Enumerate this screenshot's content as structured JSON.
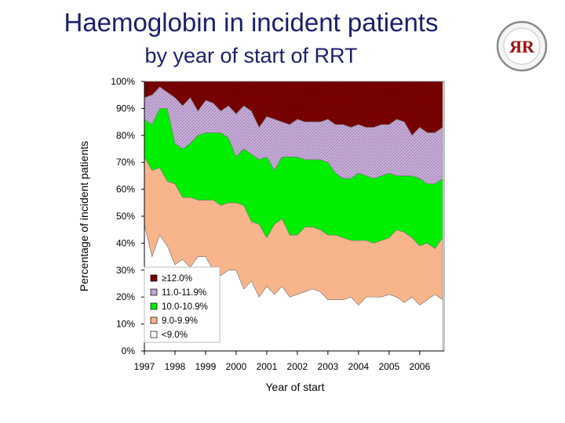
{
  "header": {
    "line1": "Haemoglobin in incident patients",
    "line2": "by year of start of RRT"
  },
  "logo": {
    "letters": "ЯR"
  },
  "chart_data": {
    "type": "area",
    "stacked": true,
    "xlabel": "Year of start",
    "ylabel": "Percentage of incident patients",
    "xlim": [
      1997,
      2006.8
    ],
    "ylim": [
      0,
      100
    ],
    "x_ticks": [
      "1997",
      "1998",
      "1999",
      "2000",
      "2001",
      "2002",
      "2003",
      "2004",
      "2005",
      "2006"
    ],
    "y_ticks": [
      "0%",
      "10%",
      "20%",
      "30%",
      "40%",
      "50%",
      "60%",
      "70%",
      "80%",
      "90%",
      "100%"
    ],
    "legend_position": "bottom-left",
    "x": [
      1997,
      1997.25,
      1997.5,
      1997.75,
      1998,
      1998.25,
      1998.5,
      1998.75,
      1999,
      1999.25,
      1999.5,
      1999.75,
      2000,
      2000.25,
      2000.5,
      2000.75,
      2001,
      2001.25,
      2001.5,
      2001.75,
      2002,
      2002.25,
      2002.5,
      2002.75,
      2003,
      2003.25,
      2003.5,
      2003.75,
      2004,
      2004.25,
      2004.5,
      2004.75,
      2005,
      2005.25,
      2005.5,
      2005.75,
      2006,
      2006.25,
      2006.5,
      2006.75
    ],
    "series": [
      {
        "name": "<9.0%",
        "color": "#ffffff",
        "values": [
          47,
          35,
          43,
          39,
          32,
          34,
          31,
          35,
          35,
          30,
          28,
          30,
          30,
          23,
          26,
          20,
          24,
          21,
          24,
          20,
          21,
          22,
          23,
          22,
          19,
          19,
          19,
          20,
          17,
          20,
          20,
          20,
          21,
          20,
          18,
          20,
          17,
          19,
          21,
          19
        ]
      },
      {
        "name": "9.0-9.9%",
        "color": "#f8b58c",
        "values": [
          25,
          32,
          25,
          24,
          30,
          23,
          26,
          21,
          21,
          26,
          26,
          25,
          25,
          31,
          22,
          27,
          18,
          26,
          25,
          23,
          22,
          24,
          23,
          23,
          24,
          24,
          23,
          21,
          24,
          21,
          20,
          21,
          21,
          25,
          26,
          22,
          22,
          21,
          17,
          23
        ]
      },
      {
        "name": "10.0-10.9%",
        "color": "#00ee00",
        "values": [
          14,
          17,
          22,
          27,
          15,
          18,
          20,
          24,
          25,
          25,
          27,
          24,
          17,
          21,
          25,
          24,
          30,
          20,
          23,
          29,
          29,
          25,
          25,
          26,
          27,
          23,
          22,
          23,
          25,
          24,
          24,
          24,
          24,
          20,
          21,
          23,
          25,
          22,
          24,
          22
        ]
      },
      {
        "name": "11.0-11.9%",
        "color": "#c9b0d8",
        "values": [
          8,
          11,
          8,
          6,
          17,
          16,
          17,
          9,
          12,
          11,
          8,
          12,
          16,
          16,
          16,
          12,
          15,
          19,
          13,
          12,
          14,
          14,
          14,
          14,
          16,
          18,
          20,
          19,
          18,
          18,
          19,
          19,
          18,
          21,
          20,
          15,
          19,
          19,
          19,
          19
        ]
      },
      {
        "name": "≥12.0%",
        "color": "#7f0000",
        "values": [
          6,
          5,
          2,
          4,
          6,
          9,
          6,
          11,
          7,
          8,
          11,
          9,
          12,
          9,
          11,
          17,
          13,
          14,
          15,
          16,
          14,
          15,
          15,
          15,
          14,
          16,
          16,
          17,
          16,
          17,
          17,
          16,
          16,
          14,
          15,
          20,
          17,
          19,
          19,
          17
        ]
      }
    ],
    "legend_order": [
      "≥12.0%",
      "11.0-11.9%",
      "10.0-10.9%",
      "9.0-9.9%",
      "<9.0%"
    ]
  }
}
